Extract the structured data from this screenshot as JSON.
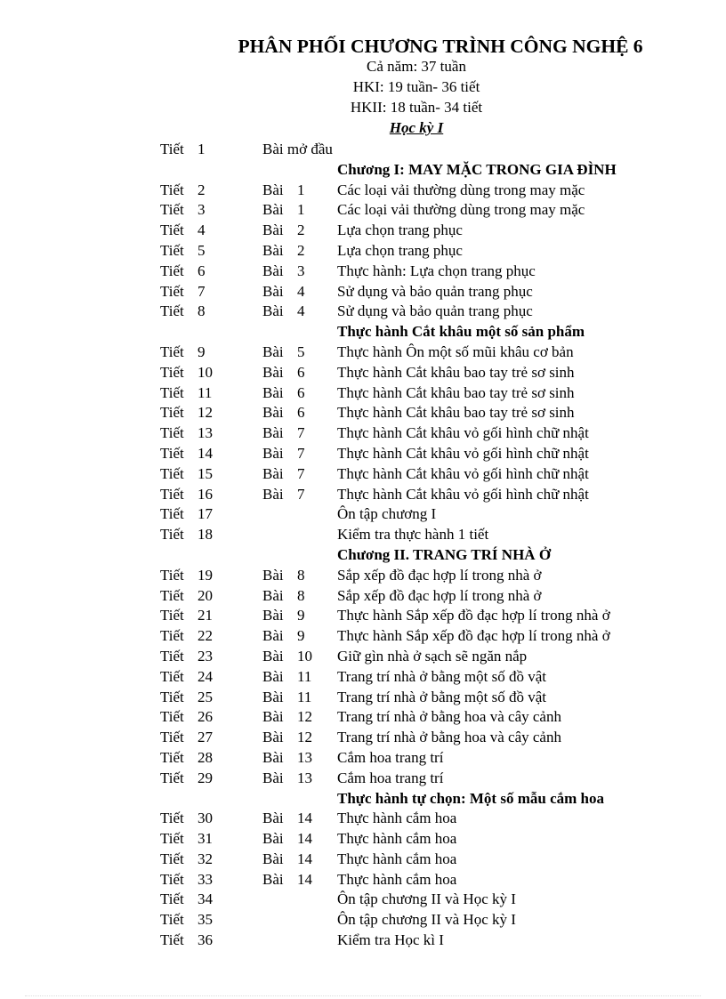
{
  "header": {
    "title": "PHÂN PHỐI CHƯƠNG TRÌNH CÔNG NGHỆ 6",
    "year": "Cả năm: 37 tuần",
    "hk1": "HKI: 19 tuần- 36 tiết",
    "hk2": "HKII: 18 tuần- 34 tiết",
    "term": "Học kỳ I"
  },
  "rows": [
    {
      "tiet_label": "Tiết",
      "tiet": "1",
      "bai_label": "",
      "bai": "",
      "content": "Bài mở đầu",
      "intro": true
    },
    {
      "heading": "Chương I: MAY MẶC TRONG GIA ĐÌNH"
    },
    {
      "tiet_label": "Tiết",
      "tiet": "2",
      "bai_label": "Bài",
      "bai": "1",
      "content": "Các loại vải thường dùng trong may mặc"
    },
    {
      "tiet_label": "Tiết",
      "tiet": "3",
      "bai_label": "Bài",
      "bai": "1",
      "content": "Các loại vải thường dùng trong may mặc"
    },
    {
      "tiet_label": "Tiết",
      "tiet": "4",
      "bai_label": "Bài",
      "bai": "2",
      "content": "Lựa chọn trang phục"
    },
    {
      "tiet_label": "Tiết",
      "tiet": "5",
      "bai_label": "Bài",
      "bai": "2",
      "content": "Lựa chọn trang phục"
    },
    {
      "tiet_label": "Tiết",
      "tiet": "6",
      "bai_label": "Bài",
      "bai": "3",
      "content": "Thực hành: Lựa chọn trang phục"
    },
    {
      "tiet_label": "Tiết",
      "tiet": "7",
      "bai_label": "Bài",
      "bai": "4",
      "content": "Sử dụng và bảo quản trang phục"
    },
    {
      "tiet_label": "Tiết",
      "tiet": "8",
      "bai_label": "Bài",
      "bai": "4",
      "content": "Sử dụng và bảo quản trang phục"
    },
    {
      "heading": "Thực hành Cắt khâu một số sản phẩm"
    },
    {
      "tiet_label": "Tiết",
      "tiet": "9",
      "bai_label": "Bài",
      "bai": "5",
      "content": "Thực hành Ôn một số mũi khâu cơ bản"
    },
    {
      "tiet_label": "Tiết",
      "tiet": "10",
      "bai_label": "Bài",
      "bai": "6",
      "content": "Thực hành Cắt khâu bao tay trẻ sơ sinh"
    },
    {
      "tiet_label": "Tiết",
      "tiet": "11",
      "bai_label": "Bài",
      "bai": "6",
      "content": "Thực hành Cắt khâu bao tay trẻ sơ sinh"
    },
    {
      "tiet_label": "Tiết",
      "tiet": "12",
      "bai_label": "Bài",
      "bai": "6",
      "content": "Thực hành Cắt khâu bao tay trẻ sơ sinh"
    },
    {
      "tiet_label": "Tiết",
      "tiet": "13",
      "bai_label": "Bài",
      "bai": "7",
      "content": "Thực hành Cắt khâu vỏ gối hình chữ nhật"
    },
    {
      "tiet_label": "Tiết",
      "tiet": "14",
      "bai_label": "Bài",
      "bai": "7",
      "content": "Thực hành Cắt khâu vỏ gối hình chữ nhật"
    },
    {
      "tiet_label": "Tiết",
      "tiet": "15",
      "bai_label": "Bài",
      "bai": "7",
      "content": "Thực hành Cắt khâu vỏ gối hình chữ nhật"
    },
    {
      "tiet_label": "Tiết",
      "tiet": "16",
      "bai_label": "Bài",
      "bai": "7",
      "content": "Thực hành Cắt khâu vỏ gối hình chữ nhật"
    },
    {
      "tiet_label": "Tiết",
      "tiet": "17",
      "bai_label": "",
      "bai": "",
      "content": "Ôn tập chương I"
    },
    {
      "tiet_label": "Tiết",
      "tiet": "18",
      "bai_label": "",
      "bai": "",
      "content": "Kiểm tra thực hành 1 tiết"
    },
    {
      "heading": "Chương II. TRANG TRÍ NHÀ Ở"
    },
    {
      "tiet_label": "Tiết",
      "tiet": "19",
      "bai_label": "Bài",
      "bai": "8",
      "content": "Sắp xếp đồ đạc hợp lí trong nhà ở"
    },
    {
      "tiet_label": "Tiết",
      "tiet": "20",
      "bai_label": "Bài",
      "bai": "8",
      "content": "Sắp xếp đồ đạc hợp lí trong nhà ở"
    },
    {
      "tiet_label": "Tiết",
      "tiet": "21",
      "bai_label": "Bài",
      "bai": "9",
      "content": "Thực hành Sắp xếp đồ đạc hợp lí trong nhà ở"
    },
    {
      "tiet_label": "Tiết",
      "tiet": "22",
      "bai_label": "Bài",
      "bai": "9",
      "content": "Thực hành Sắp xếp đồ đạc hợp lí trong nhà ở"
    },
    {
      "tiet_label": "Tiết",
      "tiet": "23",
      "bai_label": "Bài",
      "bai": "10",
      "content": "Giữ gìn nhà ở sạch sẽ ngăn nắp"
    },
    {
      "tiet_label": "Tiết",
      "tiet": "24",
      "bai_label": "Bài",
      "bai": "11",
      "content": "Trang trí nhà ở bằng một số đồ vật"
    },
    {
      "tiet_label": "Tiết",
      "tiet": "25",
      "bai_label": "Bài",
      "bai": "11",
      "content": "Trang trí nhà ở bằng một số đồ vật"
    },
    {
      "tiet_label": "Tiết",
      "tiet": "26",
      "bai_label": "Bài",
      "bai": "12",
      "content": "Trang trí nhà ở bằng hoa và cây cảnh"
    },
    {
      "tiet_label": "Tiết",
      "tiet": "27",
      "bai_label": "Bài",
      "bai": "12",
      "content": "Trang trí nhà ở bằng hoa và cây cảnh"
    },
    {
      "tiet_label": "Tiết",
      "tiet": "28",
      "bai_label": "Bài",
      "bai": "13",
      "content": "Cắm hoa trang trí"
    },
    {
      "tiet_label": "Tiết",
      "tiet": "29",
      "bai_label": "Bài",
      "bai": "13",
      "content": "Cắm hoa trang trí"
    },
    {
      "heading": "Thực hành tự chọn: Một số mẫu cắm hoa"
    },
    {
      "tiet_label": "Tiết",
      "tiet": "30",
      "bai_label": "Bài",
      "bai": "14",
      "content": "Thực hành cắm hoa"
    },
    {
      "tiet_label": "Tiết",
      "tiet": "31",
      "bai_label": "Bài",
      "bai": "14",
      "content": "Thực hành cắm hoa"
    },
    {
      "tiet_label": "Tiết",
      "tiet": "32",
      "bai_label": "Bài",
      "bai": "14",
      "content": "Thực hành cắm hoa"
    },
    {
      "tiet_label": "Tiết",
      "tiet": "33",
      "bai_label": "Bài",
      "bai": "14",
      "content": "Thực hành cắm hoa"
    },
    {
      "tiet_label": "Tiết",
      "tiet": "34",
      "bai_label": "",
      "bai": "",
      "content": "Ôn tập chương II và Học kỳ I"
    },
    {
      "tiet_label": "Tiết",
      "tiet": "35",
      "bai_label": "",
      "bai": "",
      "content": "Ôn tập chương II và Học kỳ I"
    },
    {
      "tiet_label": "Tiết",
      "tiet": "36",
      "bai_label": "",
      "bai": "",
      "content": "Kiểm tra Học kì I"
    }
  ]
}
